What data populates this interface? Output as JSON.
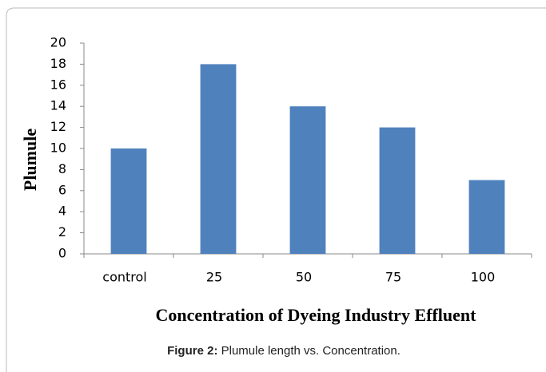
{
  "chart_data": {
    "type": "bar",
    "categories": [
      "control",
      "25",
      "50",
      "75",
      "100"
    ],
    "values": [
      10,
      18,
      14,
      12,
      7
    ],
    "color": "#4f81bd",
    "ylim": [
      0,
      20
    ],
    "yticks": [
      0,
      2,
      4,
      6,
      8,
      10,
      12,
      14,
      16,
      18,
      20
    ],
    "grid": false,
    "y_label": "Plumule",
    "x_label": "Concentration of Dyeing Industry Effluent",
    "caption_label": "Figure 2:",
    "caption": "Plumule length vs. Concentration."
  }
}
